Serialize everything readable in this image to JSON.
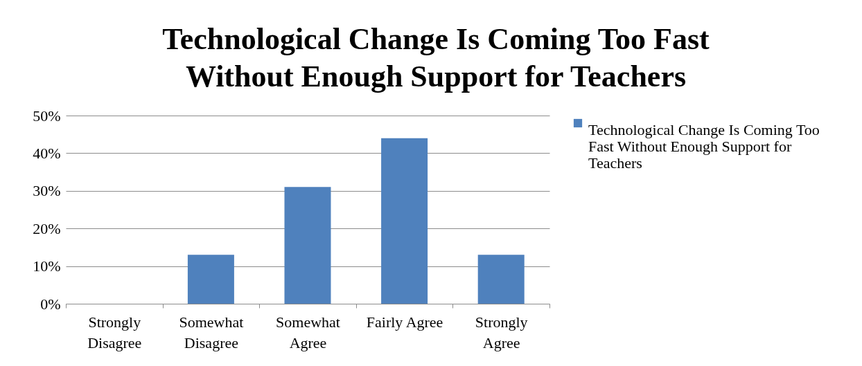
{
  "chart_data": {
    "type": "bar",
    "title": "Technological Change Is Coming Too Fast Without Enough Support for Teachers",
    "categories": [
      "Strongly Disagree",
      "Somewhat Disagree",
      "Somewhat Agree",
      "Fairly Agree",
      "Strongly Agree"
    ],
    "series": [
      {
        "name": "Technological Change Is Coming Too Fast Without Enough Support for Teachers",
        "color": "#4f81bd",
        "values": [
          0,
          13,
          31,
          44,
          13
        ]
      }
    ],
    "ylim": [
      0,
      50
    ],
    "yticks": [
      {
        "value": 0,
        "label": "0%"
      },
      {
        "value": 10,
        "label": "10%"
      },
      {
        "value": 20,
        "label": "20%"
      },
      {
        "value": 30,
        "label": "30%"
      },
      {
        "value": 40,
        "label": "40%"
      },
      {
        "value": 50,
        "label": "50%"
      }
    ],
    "grid": "y",
    "legend": "right"
  }
}
